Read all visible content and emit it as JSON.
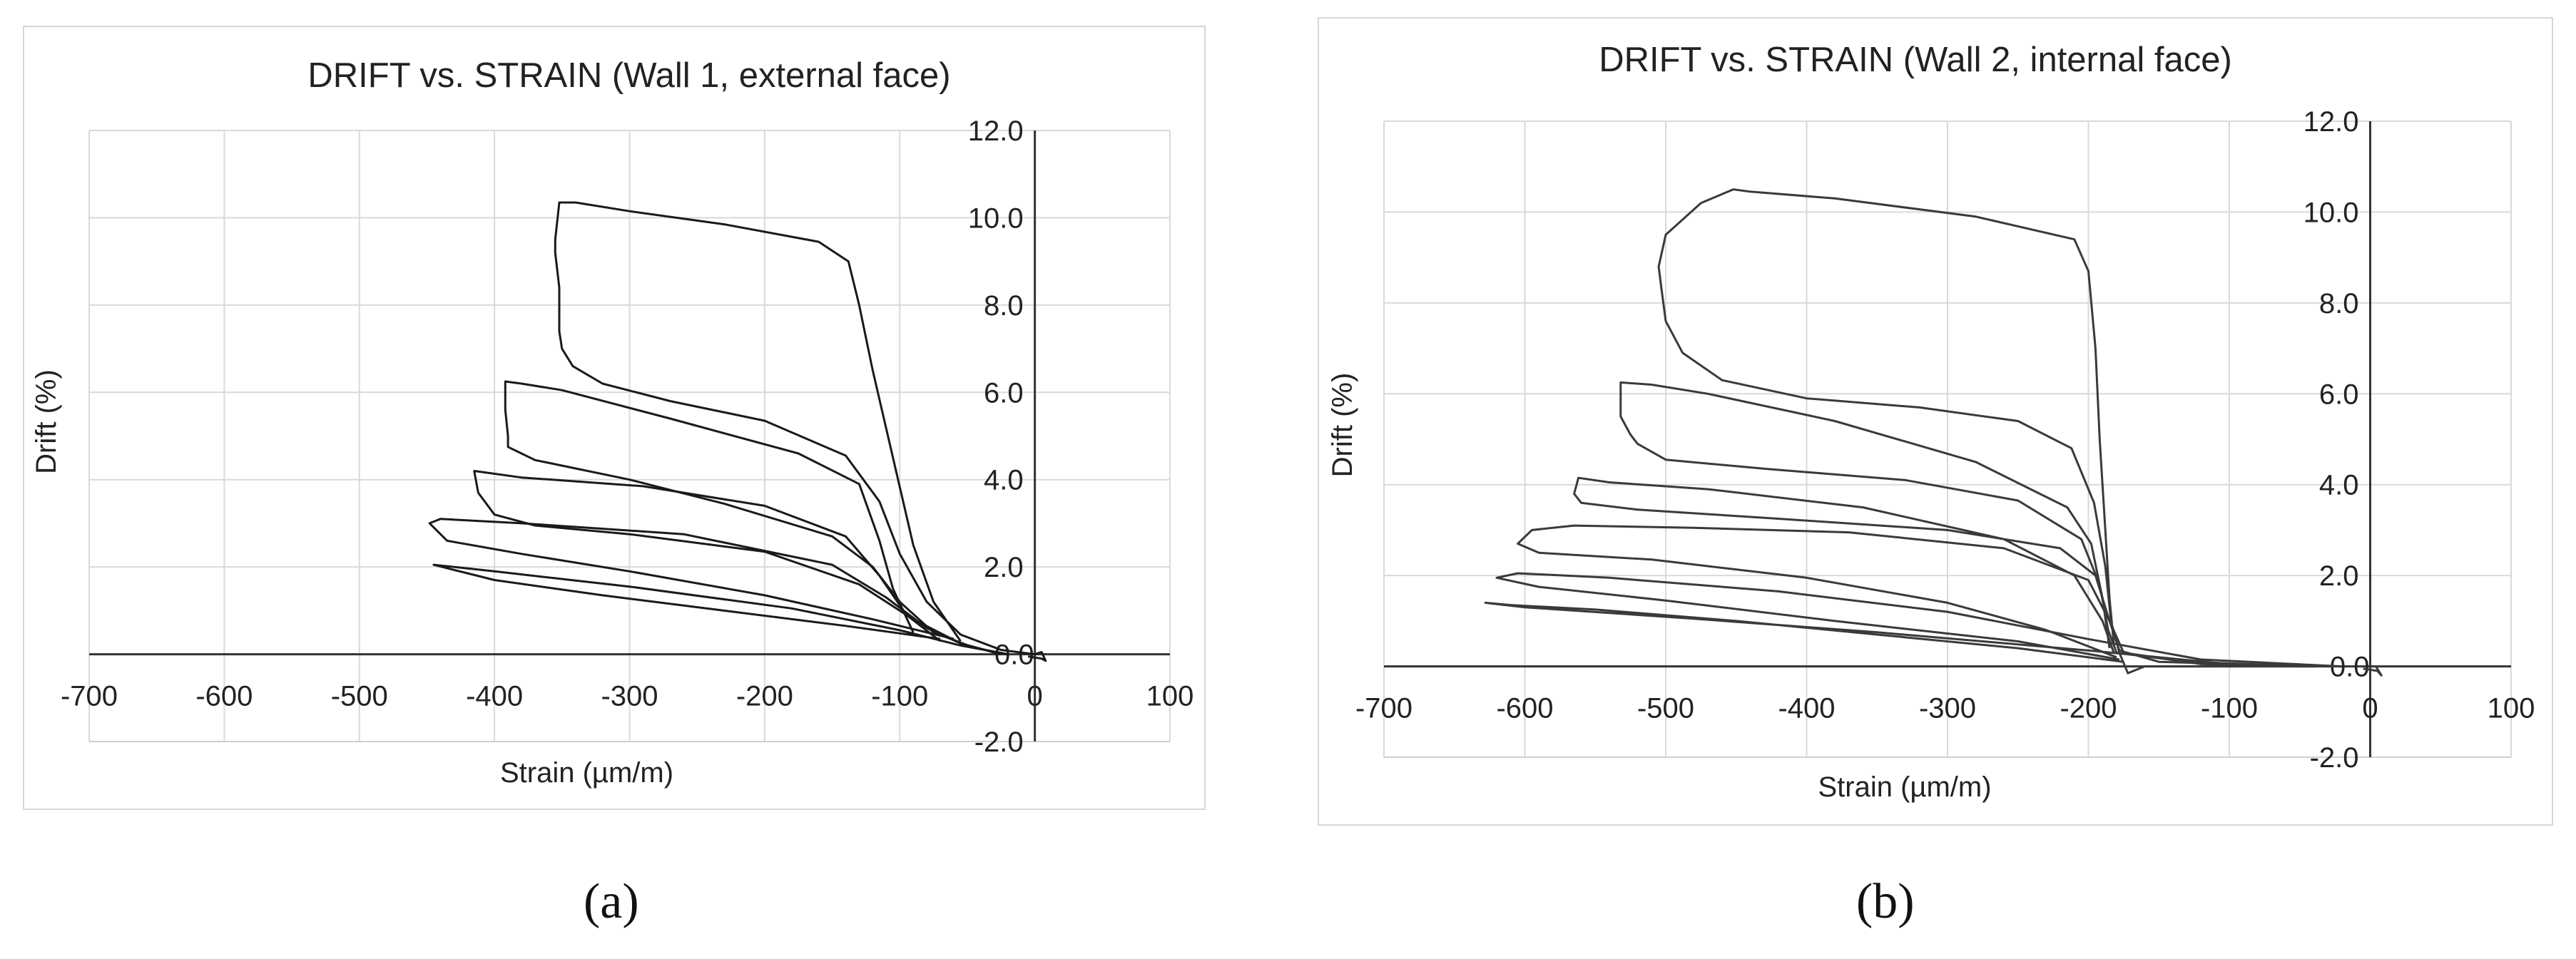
{
  "chart_data": [
    {
      "type": "line",
      "panel": "(a)",
      "title": "DRIFT vs. STRAIN (Wall 1, external face)",
      "xlabel": "Strain (µm/m)",
      "ylabel": "Drift (%)",
      "xlim": [
        -700,
        100
      ],
      "ylim": [
        -2,
        12
      ],
      "x_ticks": [
        -700,
        -600,
        -500,
        -400,
        -300,
        -200,
        -100,
        0,
        100
      ],
      "y_ticks": [
        -2.0,
        2.0,
        4.0,
        6.0,
        8.0,
        10.0,
        12.0
      ],
      "y_tick_labels": [
        "-2.0",
        "2.0",
        "4.0",
        "6.0",
        "8.0",
        "10.0",
        "12.0"
      ],
      "origin_label": "0.0",
      "grid": true,
      "legend": "none",
      "line_color": "#1a1a1a",
      "series": [
        {
          "points": [
            [
              -70,
              0.35
            ],
            [
              -140,
              0.65
            ],
            [
              -230,
              1.0
            ],
            [
              -320,
              1.35
            ],
            [
              -400,
              1.7
            ],
            [
              -445,
              2.05
            ],
            [
              -400,
              1.9
            ],
            [
              -300,
              1.55
            ],
            [
              -180,
              1.05
            ],
            [
              -100,
              0.55
            ],
            [
              -55,
              0.2
            ],
            [
              -20,
              0.0
            ]
          ]
        },
        {
          "points": [
            [
              -60,
              0.35
            ],
            [
              -120,
              0.8
            ],
            [
              -200,
              1.35
            ],
            [
              -300,
              1.9
            ],
            [
              -380,
              2.3
            ],
            [
              -435,
              2.6
            ],
            [
              -448,
              3.0
            ],
            [
              -440,
              3.1
            ],
            [
              -380,
              3.0
            ],
            [
              -260,
              2.75
            ],
            [
              -150,
              2.05
            ],
            [
              -110,
              1.3
            ],
            [
              -80,
              0.6
            ],
            [
              -55,
              0.25
            ],
            [
              -25,
              0.0
            ]
          ]
        },
        {
          "points": [
            [
              -70,
              0.3
            ],
            [
              -95,
              0.9
            ],
            [
              -115,
              1.8
            ],
            [
              -140,
              2.7
            ],
            [
              -200,
              3.4
            ],
            [
              -290,
              3.85
            ],
            [
              -380,
              4.05
            ],
            [
              -415,
              4.2
            ],
            [
              -412,
              3.7
            ],
            [
              -400,
              3.2
            ],
            [
              -370,
              2.95
            ],
            [
              -300,
              2.75
            ],
            [
              -200,
              2.35
            ],
            [
              -130,
              1.6
            ],
            [
              -90,
              0.8
            ],
            [
              -55,
              0.25
            ],
            [
              -25,
              0.0
            ]
          ]
        },
        {
          "points": [
            [
              -90,
              0.5
            ],
            [
              -105,
              1.5
            ],
            [
              -115,
              2.6
            ],
            [
              -130,
              3.9
            ],
            [
              -175,
              4.6
            ],
            [
              -270,
              5.4
            ],
            [
              -350,
              6.05
            ],
            [
              -380,
              6.2
            ],
            [
              -392,
              6.25
            ],
            [
              -392,
              5.6
            ],
            [
              -390,
              5.0
            ],
            [
              -390,
              4.75
            ],
            [
              -370,
              4.45
            ],
            [
              -300,
              4.0
            ],
            [
              -230,
              3.45
            ],
            [
              -150,
              2.7
            ],
            [
              -120,
              2.0
            ],
            [
              -100,
              1.2
            ],
            [
              -75,
              0.5
            ],
            [
              -45,
              0.15
            ],
            [
              -20,
              0.0
            ]
          ]
        },
        {
          "points": [
            [
              -55,
              0.3
            ],
            [
              -75,
              1.2
            ],
            [
              -90,
              2.5
            ],
            [
              -105,
              4.5
            ],
            [
              -120,
              6.5
            ],
            [
              -130,
              8.0
            ],
            [
              -138,
              9.0
            ],
            [
              -160,
              9.45
            ],
            [
              -230,
              9.85
            ],
            [
              -300,
              10.15
            ],
            [
              -340,
              10.35
            ],
            [
              -352,
              10.35
            ],
            [
              -355,
              9.5
            ],
            [
              -355,
              9.2
            ],
            [
              -352,
              8.4
            ],
            [
              -352,
              7.4
            ],
            [
              -350,
              7.0
            ],
            [
              -342,
              6.6
            ],
            [
              -320,
              6.2
            ],
            [
              -270,
              5.8
            ],
            [
              -200,
              5.35
            ],
            [
              -140,
              4.55
            ],
            [
              -115,
              3.5
            ],
            [
              -100,
              2.3
            ],
            [
              -80,
              1.2
            ],
            [
              -55,
              0.45
            ],
            [
              -25,
              0.1
            ],
            [
              0,
              0.0
            ]
          ]
        },
        {
          "points": [
            [
              -5,
              -0.05
            ],
            [
              5,
              -0.1
            ],
            [
              8,
              -0.15
            ],
            [
              5,
              0.05
            ],
            [
              0,
              0.0
            ]
          ]
        }
      ]
    },
    {
      "type": "line",
      "panel": "(b)",
      "title": "DRIFT vs. STRAIN (Wall 2, internal face)",
      "xlabel": "Strain (µm/m)",
      "ylabel": "Drift (%)",
      "xlim": [
        -700,
        100
      ],
      "ylim": [
        -2,
        12
      ],
      "x_ticks": [
        -700,
        -600,
        -500,
        -400,
        -300,
        -200,
        -100,
        0,
        100
      ],
      "y_ticks": [
        -2.0,
        2.0,
        4.0,
        6.0,
        8.0,
        10.0,
        12.0
      ],
      "y_tick_labels": [
        "-2.0",
        "2.0",
        "4.0",
        "6.0",
        "8.0",
        "10.0",
        "12.0"
      ],
      "origin_label": "0.0",
      "grid": true,
      "legend": "none",
      "line_color": "#3a3a3a",
      "series": [
        {
          "points": [
            [
              -175,
              0.1
            ],
            [
              -250,
              0.4
            ],
            [
              -350,
              0.7
            ],
            [
              -450,
              1.0
            ],
            [
              -550,
              1.25
            ],
            [
              -610,
              1.35
            ],
            [
              -628,
              1.4
            ],
            [
              -600,
              1.3
            ],
            [
              -480,
              1.05
            ],
            [
              -350,
              0.75
            ],
            [
              -200,
              0.35
            ],
            [
              -100,
              0.05
            ],
            [
              -20,
              0.0
            ]
          ]
        },
        {
          "points": [
            [
              -178,
              0.15
            ],
            [
              -250,
              0.55
            ],
            [
              -380,
              1.0
            ],
            [
              -500,
              1.45
            ],
            [
              -590,
              1.75
            ],
            [
              -620,
              1.95
            ],
            [
              -605,
              2.05
            ],
            [
              -540,
              1.95
            ],
            [
              -420,
              1.65
            ],
            [
              -300,
              1.2
            ],
            [
              -200,
              0.6
            ],
            [
              -120,
              0.15
            ],
            [
              -20,
              0.0
            ]
          ]
        },
        {
          "points": [
            [
              -180,
              0.2
            ],
            [
              -230,
              0.8
            ],
            [
              -300,
              1.4
            ],
            [
              -400,
              1.95
            ],
            [
              -510,
              2.35
            ],
            [
              -590,
              2.5
            ],
            [
              -605,
              2.7
            ],
            [
              -595,
              3.0
            ],
            [
              -565,
              3.1
            ],
            [
              -480,
              3.05
            ],
            [
              -370,
              2.95
            ],
            [
              -260,
              2.6
            ],
            [
              -200,
              1.9
            ],
            [
              -185,
              1.0
            ],
            [
              -175,
              0.3
            ],
            [
              -120,
              0.05
            ],
            [
              -30,
              0.0
            ]
          ]
        },
        {
          "points": [
            [
              -182,
              0.3
            ],
            [
              -190,
              1.0
            ],
            [
              -210,
              2.0
            ],
            [
              -260,
              2.8
            ],
            [
              -360,
              3.5
            ],
            [
              -470,
              3.9
            ],
            [
              -540,
              4.05
            ],
            [
              -562,
              4.15
            ],
            [
              -565,
              3.8
            ],
            [
              -560,
              3.6
            ],
            [
              -520,
              3.45
            ],
            [
              -420,
              3.25
            ],
            [
              -300,
              3.0
            ],
            [
              -220,
              2.6
            ],
            [
              -195,
              2.0
            ],
            [
              -185,
              1.0
            ],
            [
              -178,
              0.35
            ],
            [
              -150,
              0.1
            ],
            [
              -40,
              0.0
            ]
          ]
        },
        {
          "points": [
            [
              -185,
              0.4
            ],
            [
              -190,
              1.5
            ],
            [
              -198,
              2.7
            ],
            [
              -215,
              3.5
            ],
            [
              -280,
              4.5
            ],
            [
              -380,
              5.4
            ],
            [
              -470,
              6.0
            ],
            [
              -510,
              6.2
            ],
            [
              -532,
              6.25
            ],
            [
              -532,
              5.5
            ],
            [
              -525,
              5.1
            ],
            [
              -520,
              4.9
            ],
            [
              -500,
              4.55
            ],
            [
              -430,
              4.35
            ],
            [
              -330,
              4.1
            ],
            [
              -250,
              3.65
            ],
            [
              -205,
              2.8
            ],
            [
              -192,
              1.8
            ],
            [
              -186,
              0.8
            ],
            [
              -180,
              0.3
            ],
            [
              -130,
              0.1
            ],
            [
              -40,
              0.0
            ]
          ]
        },
        {
          "points": [
            [
              -182,
              0.5
            ],
            [
              -185,
              1.5
            ],
            [
              -188,
              3.0
            ],
            [
              -192,
              5.0
            ],
            [
              -195,
              7.0
            ],
            [
              -200,
              8.7
            ],
            [
              -210,
              9.4
            ],
            [
              -280,
              9.9
            ],
            [
              -380,
              10.3
            ],
            [
              -440,
              10.45
            ],
            [
              -452,
              10.5
            ],
            [
              -475,
              10.2
            ],
            [
              -500,
              9.5
            ],
            [
              -505,
              8.8
            ],
            [
              -503,
              8.3
            ],
            [
              -500,
              7.6
            ],
            [
              -488,
              6.9
            ],
            [
              -460,
              6.3
            ],
            [
              -400,
              5.9
            ],
            [
              -320,
              5.7
            ],
            [
              -250,
              5.4
            ],
            [
              -212,
              4.8
            ],
            [
              -196,
              3.6
            ],
            [
              -188,
              2.2
            ],
            [
              -184,
              1.0
            ],
            [
              -178,
              0.3
            ],
            [
              -172,
              -0.15
            ],
            [
              -160,
              0.0
            ],
            [
              -40,
              0.0
            ]
          ]
        },
        {
          "points": [
            [
              -5,
              -0.05
            ],
            [
              5,
              -0.1
            ],
            [
              8,
              -0.2
            ],
            [
              4,
              0.0
            ],
            [
              0,
              0.0
            ]
          ]
        }
      ]
    }
  ],
  "panel_labels": {
    "a": "(a)",
    "b": "(b)"
  }
}
